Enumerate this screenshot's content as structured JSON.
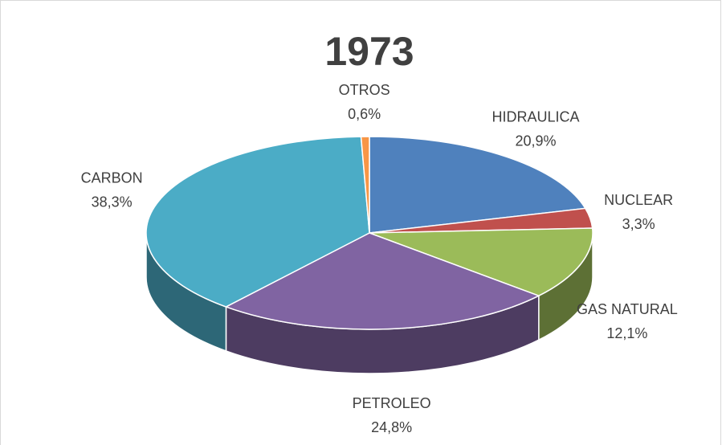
{
  "chart_data": {
    "type": "pie",
    "title": "1973",
    "categories": [
      "HIDRAULICA",
      "NUCLEAR",
      "GAS NATURAL",
      "PETROLEO",
      "CARBON",
      "OTROS"
    ],
    "values": [
      20.9,
      3.3,
      12.1,
      24.8,
      38.3,
      0.6
    ],
    "value_labels": [
      "20,9%",
      "3,3%",
      "12,1%",
      "24,8%",
      "38,3%",
      "0,6%"
    ],
    "colors": [
      "#4f81bd",
      "#c0504d",
      "#9bbb59",
      "#8064a2",
      "#4bacc6",
      "#f79646"
    ]
  }
}
